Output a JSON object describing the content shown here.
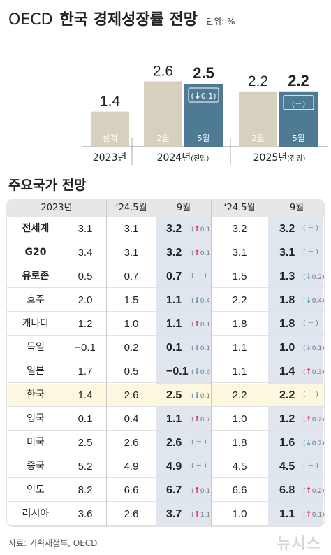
{
  "title": {
    "oecd": "OECD",
    "main": "한국 경제성장률 전망",
    "unit": "단위: %"
  },
  "colors": {
    "actual": "#d6d0bf",
    "feb": "#d6d0bf",
    "may": "#4f7a94",
    "up": "#d9264c",
    "down": "#3a97d6",
    "highlight_col": "#dfe6ee",
    "korea_row": "#fbf8df"
  },
  "chart_data": {
    "type": "bar",
    "groups": [
      {
        "label": "2023년",
        "bars": [
          {
            "name": "실적",
            "value": 1.4,
            "label": "1.4"
          }
        ]
      },
      {
        "label": "2024년",
        "sub": "(전망)",
        "bars": [
          {
            "name": "2월",
            "value": 2.6,
            "label": "2.6"
          },
          {
            "name": "5월",
            "value": 2.5,
            "label": "2.5",
            "change": "0.1",
            "direction": "down"
          }
        ]
      },
      {
        "label": "2025년",
        "sub": "(전망)",
        "bars": [
          {
            "name": "2월",
            "value": 2.2,
            "label": "2.2"
          },
          {
            "name": "5월",
            "value": 2.2,
            "label": "2.2",
            "change": "－",
            "direction": "none"
          }
        ]
      }
    ]
  },
  "section_title": "주요국가 전망",
  "table": {
    "headers": [
      "2023년",
      "‘24.5월",
      "9월",
      "‘24.5월",
      "9월"
    ],
    "rows": [
      {
        "country": "전세계",
        "bold": true,
        "y2023": "3.1",
        "y24_may": "3.1",
        "y24_sep": "3.2",
        "y24_chg": "0.1",
        "y24_dir": "up",
        "y25_may": "3.2",
        "y25_sep": "3.2",
        "y25_chg": "－",
        "y25_dir": "none"
      },
      {
        "country": "G20",
        "bold": true,
        "y2023": "3.4",
        "y24_may": "3.1",
        "y24_sep": "3.2",
        "y24_chg": "0.1",
        "y24_dir": "up",
        "y25_may": "3.1",
        "y25_sep": "3.1",
        "y25_chg": "－",
        "y25_dir": "none"
      },
      {
        "country": "유로존",
        "bold": true,
        "y2023": "0.5",
        "y24_may": "0.7",
        "y24_sep": "0.7",
        "y24_chg": "－",
        "y24_dir": "none",
        "y25_may": "1.5",
        "y25_sep": "1.3",
        "y25_chg": "0.2",
        "y25_dir": "down"
      },
      {
        "country": "호주",
        "bold": false,
        "y2023": "2.0",
        "y24_may": "1.5",
        "y24_sep": "1.1",
        "y24_chg": "0.4",
        "y24_dir": "down",
        "y25_may": "2.2",
        "y25_sep": "1.8",
        "y25_chg": "0.4",
        "y25_dir": "down"
      },
      {
        "country": "캐나다",
        "bold": false,
        "y2023": "1.2",
        "y24_may": "1.0",
        "y24_sep": "1.1",
        "y24_chg": "0.1",
        "y24_dir": "up",
        "y25_may": "1.8",
        "y25_sep": "1.8",
        "y25_chg": "－",
        "y25_dir": "none"
      },
      {
        "country": "독일",
        "bold": false,
        "y2023": "−0.1",
        "y24_may": "0.2",
        "y24_sep": "0.1",
        "y24_chg": "0.1",
        "y24_dir": "down",
        "y25_may": "1.1",
        "y25_sep": "1.0",
        "y25_chg": "0.1",
        "y25_dir": "down"
      },
      {
        "country": "일본",
        "bold": false,
        "y2023": "1.7",
        "y24_may": "0.5",
        "y24_sep": "−0.1",
        "y24_chg": "0.6",
        "y24_dir": "down",
        "y25_may": "1.1",
        "y25_sep": "1.4",
        "y25_chg": "0.3",
        "y25_dir": "up"
      },
      {
        "country": "한국",
        "bold": false,
        "korea": true,
        "y2023": "1.4",
        "y24_may": "2.6",
        "y24_sep": "2.5",
        "y24_chg": "0.1",
        "y24_dir": "down",
        "y25_may": "2.2",
        "y25_sep": "2.2",
        "y25_chg": "－",
        "y25_dir": "none"
      },
      {
        "country": "영국",
        "bold": false,
        "y2023": "0.1",
        "y24_may": "0.4",
        "y24_sep": "1.1",
        "y24_chg": "0.7",
        "y24_dir": "up",
        "y25_may": "1.0",
        "y25_sep": "1.2",
        "y25_chg": "0.2",
        "y25_dir": "up"
      },
      {
        "country": "미국",
        "bold": false,
        "y2023": "2.5",
        "y24_may": "2.6",
        "y24_sep": "2.6",
        "y24_chg": "－",
        "y24_dir": "none",
        "y25_may": "1.8",
        "y25_sep": "1.6",
        "y25_chg": "0.2",
        "y25_dir": "down"
      },
      {
        "country": "중국",
        "bold": false,
        "y2023": "5.2",
        "y24_may": "4.9",
        "y24_sep": "4.9",
        "y24_chg": "－",
        "y24_dir": "none",
        "y25_may": "4.5",
        "y25_sep": "4.5",
        "y25_chg": "－",
        "y25_dir": "none"
      },
      {
        "country": "인도",
        "bold": false,
        "y2023": "8.2",
        "y24_may": "6.6",
        "y24_sep": "6.7",
        "y24_chg": "0.1",
        "y24_dir": "up",
        "y25_may": "6.6",
        "y25_sep": "6.8",
        "y25_chg": "0.2",
        "y25_dir": "up"
      },
      {
        "country": "러시아",
        "bold": false,
        "y2023": "3.6",
        "y24_may": "2.6",
        "y24_sep": "3.7",
        "y24_chg": "1.1",
        "y24_dir": "up",
        "y25_may": "1.0",
        "y25_sep": "1.1",
        "y25_chg": "0.1",
        "y25_dir": "up"
      }
    ]
  },
  "source": "자료: 기획재정부, OECD",
  "watermark": "뉴시스"
}
